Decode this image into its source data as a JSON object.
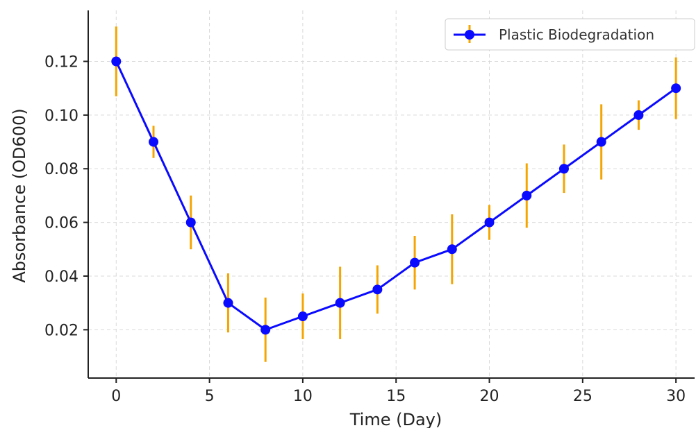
{
  "chart_data": {
    "type": "line",
    "title": "",
    "xlabel": "Time (Day)",
    "ylabel": "Absorbance (OD600)",
    "xlim": [
      -1.5,
      31
    ],
    "ylim": [
      0.002,
      0.139
    ],
    "xticks": [
      0,
      5,
      10,
      15,
      20,
      25,
      30
    ],
    "yticks": [
      0.02,
      0.04,
      0.06,
      0.08,
      0.1,
      0.12
    ],
    "ytick_labels": [
      "0.02",
      "0.04",
      "0.06",
      "0.08",
      "0.10",
      "0.12"
    ],
    "grid": true,
    "legend_position": "top-right",
    "series": [
      {
        "name": "Plastic Biodegradation",
        "color": "#0a0aff",
        "error_color": "#f5a500",
        "x": [
          0,
          2,
          4,
          6,
          8,
          10,
          12,
          14,
          16,
          18,
          20,
          22,
          24,
          26,
          28,
          30
        ],
        "y": [
          0.12,
          0.09,
          0.06,
          0.03,
          0.02,
          0.025,
          0.03,
          0.035,
          0.045,
          0.05,
          0.06,
          0.07,
          0.08,
          0.09,
          0.1,
          0.11
        ],
        "error": [
          0.013,
          0.006,
          0.01,
          0.011,
          0.012,
          0.0085,
          0.0135,
          0.009,
          0.01,
          0.013,
          0.0065,
          0.012,
          0.009,
          0.014,
          0.0055,
          0.0115
        ]
      }
    ]
  }
}
